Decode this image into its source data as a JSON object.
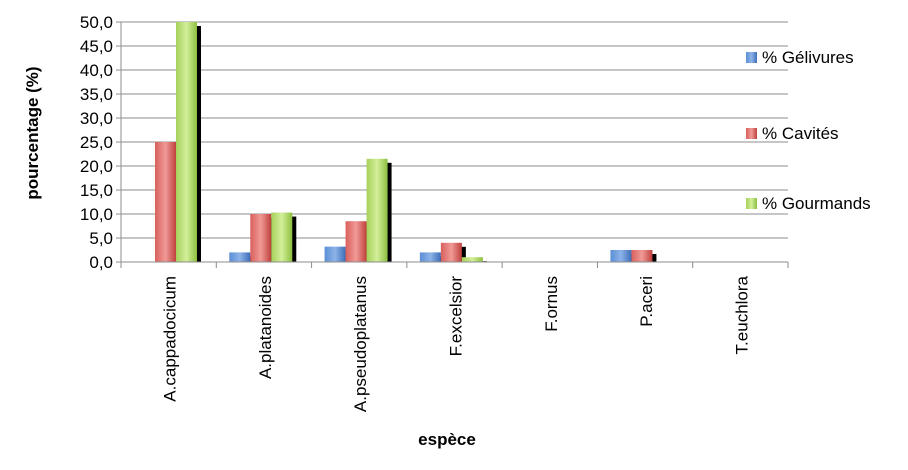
{
  "chart_data": {
    "type": "bar",
    "title": "",
    "xlabel": "espèce",
    "ylabel": "pourcentage (%)",
    "ylim": [
      0,
      50
    ],
    "y_ticks": [
      "0,0",
      "5,0",
      "10,0",
      "15,0",
      "20,0",
      "25,0",
      "30,0",
      "35,0",
      "40,0",
      "45,0",
      "50,0"
    ],
    "grid": true,
    "legend_position": "right",
    "categories": [
      "A.cappadocicum",
      "A.platanoides",
      "A.pseudoplatanus",
      "F.excelsior",
      "F.ornus",
      "P.aceri",
      "T.euchlora"
    ],
    "series": [
      {
        "name": "% Gélivures",
        "color": "#4f81bd",
        "values": [
          0,
          2.0,
          3.2,
          2.0,
          0,
          2.5,
          0
        ]
      },
      {
        "name": "% Cavités",
        "color": "#c0504d",
        "values": [
          25.0,
          10.0,
          8.5,
          4.0,
          0,
          2.5,
          0
        ]
      },
      {
        "name": "% Gourmands",
        "color": "#9bbb59",
        "values": [
          50.0,
          10.3,
          21.5,
          1.0,
          0,
          0,
          0
        ]
      }
    ]
  }
}
